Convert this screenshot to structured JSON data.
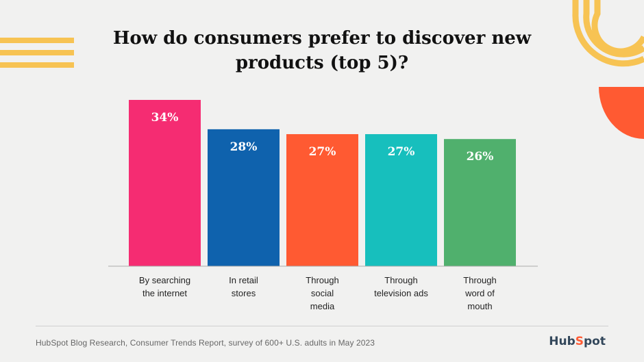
{
  "chart_data": {
    "type": "bar",
    "title": "How do consumers prefer to discover new products (top 5)?",
    "categories": [
      "By searching the internet",
      "In retail stores",
      "Through social media",
      "Through television ads",
      "Through word of mouth"
    ],
    "values": [
      34,
      28,
      27,
      27,
      26
    ],
    "value_labels": [
      "34%",
      "28%",
      "27%",
      "27%",
      "26%"
    ],
    "bar_colors": [
      "#f52c72",
      "#0f62ad",
      "#ff5a32",
      "#17bfbd",
      "#50b06d"
    ],
    "ylim": [
      0,
      34
    ],
    "grid": false,
    "legend": "none"
  },
  "footer": {
    "source": "HubSpot Blog Research, Consumer Trends Report, survey of 600+ U.S. adults in May 2023",
    "logo_text": "HubSpot"
  },
  "colors": {
    "background": "#f1f1f0",
    "accent_yellow": "#f7c353",
    "accent_orange": "#ff5a32"
  }
}
